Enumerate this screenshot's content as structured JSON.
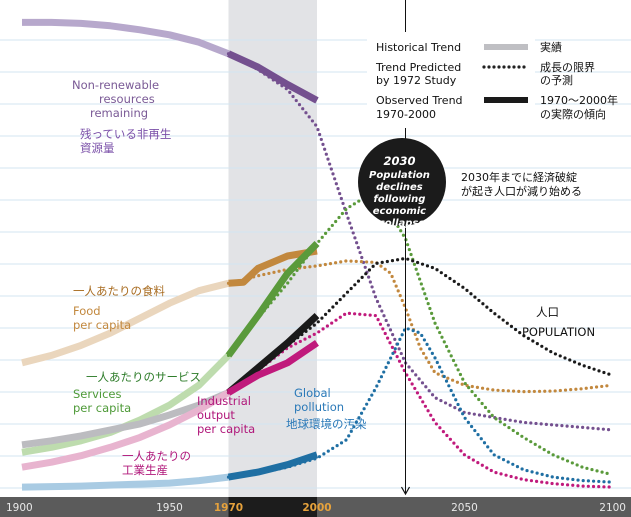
{
  "chart_data": {
    "type": "line",
    "xlim": [
      1900,
      2100
    ],
    "ylim": [
      0,
      1
    ],
    "x_ticks": [
      {
        "value": 1900,
        "label": "1900",
        "highlight": false
      },
      {
        "value": 1950,
        "label": "1950",
        "highlight": false
      },
      {
        "value": 1970,
        "label": "1970",
        "highlight": true
      },
      {
        "value": 2000,
        "label": "2000",
        "highlight": true
      },
      {
        "value": 2050,
        "label": "2050",
        "highlight": false
      },
      {
        "value": 2100,
        "label": "2100",
        "highlight": false
      }
    ],
    "shaded_period": [
      1970,
      2000
    ],
    "marker_year": 2030,
    "legend": [
      {
        "key": "historical",
        "en": "Historical Trend",
        "ja": "実績",
        "style": "solid-light"
      },
      {
        "key": "predicted",
        "en_lines": [
          "Trend Predicted",
          "by 1972 Study"
        ],
        "ja_lines": [
          "成長の限界",
          "の予測"
        ],
        "style": "dotted"
      },
      {
        "key": "observed",
        "en_lines": [
          "Observed Trend",
          "1970-2000"
        ],
        "ja_lines": [
          "1970～2000年",
          "の実際の傾向"
        ],
        "style": "solid-dark"
      }
    ],
    "annotation": {
      "circle_lines": [
        "2030",
        "Population",
        "declines",
        "following",
        "economic",
        "collapse"
      ],
      "ja_lines": [
        "2030年までに経済破綻",
        "が起き人口が減り始める"
      ]
    },
    "series": [
      {
        "key": "resources",
        "label_en": [
          "Non-renewable",
          "resources",
          "remaining"
        ],
        "label_ja": [
          "残っている非再生",
          "資源量"
        ],
        "color_historical": "#b7a8cc",
        "color_main": "#74508f",
        "historical": [
          [
            1900,
            0.955
          ],
          [
            1910,
            0.955
          ],
          [
            1920,
            0.953
          ],
          [
            1930,
            0.948
          ],
          [
            1940,
            0.94
          ],
          [
            1950,
            0.93
          ],
          [
            1960,
            0.915
          ],
          [
            1970,
            0.892
          ]
        ],
        "observed": [
          [
            1970,
            0.892
          ],
          [
            1980,
            0.865
          ],
          [
            1990,
            0.83
          ],
          [
            2000,
            0.798
          ]
        ],
        "predicted": [
          [
            1970,
            0.892
          ],
          [
            1980,
            0.86
          ],
          [
            1990,
            0.82
          ],
          [
            2000,
            0.745
          ],
          [
            2010,
            0.57
          ],
          [
            2020,
            0.4
          ],
          [
            2030,
            0.27
          ],
          [
            2040,
            0.2
          ],
          [
            2050,
            0.17
          ],
          [
            2060,
            0.16
          ],
          [
            2070,
            0.15
          ],
          [
            2080,
            0.145
          ],
          [
            2090,
            0.14
          ],
          [
            2100,
            0.135
          ]
        ]
      },
      {
        "key": "food",
        "label_en": [
          "Food",
          "per capita"
        ],
        "label_ja": [
          "一人あたりの食料"
        ],
        "color_historical": "#ead6bd",
        "color_main": "#c2883e",
        "historical": [
          [
            1900,
            0.27
          ],
          [
            1910,
            0.285
          ],
          [
            1920,
            0.305
          ],
          [
            1930,
            0.33
          ],
          [
            1940,
            0.36
          ],
          [
            1950,
            0.39
          ],
          [
            1960,
            0.415
          ],
          [
            1970,
            0.43
          ]
        ],
        "observed": [
          [
            1970,
            0.43
          ],
          [
            1975,
            0.432
          ],
          [
            1980,
            0.46
          ],
          [
            1990,
            0.485
          ],
          [
            2000,
            0.495
          ]
        ],
        "predicted": [
          [
            1970,
            0.43
          ],
          [
            1980,
            0.445
          ],
          [
            1990,
            0.458
          ],
          [
            2000,
            0.465
          ],
          [
            2010,
            0.475
          ],
          [
            2020,
            0.472
          ],
          [
            2025,
            0.45
          ],
          [
            2030,
            0.38
          ],
          [
            2035,
            0.3
          ],
          [
            2040,
            0.25
          ],
          [
            2050,
            0.225
          ],
          [
            2060,
            0.215
          ],
          [
            2070,
            0.212
          ],
          [
            2080,
            0.213
          ],
          [
            2090,
            0.218
          ],
          [
            2100,
            0.225
          ]
        ]
      },
      {
        "key": "services",
        "label_en": [
          "Services",
          "per capita"
        ],
        "label_ja": [
          "一人あたりのサービス"
        ],
        "color_historical": "#bedcae",
        "color_main": "#5a9a3b",
        "historical": [
          [
            1900,
            0.09
          ],
          [
            1910,
            0.1
          ],
          [
            1920,
            0.113
          ],
          [
            1930,
            0.13
          ],
          [
            1940,
            0.155
          ],
          [
            1950,
            0.185
          ],
          [
            1960,
            0.225
          ],
          [
            1970,
            0.285
          ]
        ],
        "observed": [
          [
            1970,
            0.285
          ],
          [
            1980,
            0.365
          ],
          [
            1990,
            0.45
          ],
          [
            2000,
            0.51
          ]
        ],
        "predicted": [
          [
            1970,
            0.285
          ],
          [
            1980,
            0.36
          ],
          [
            1990,
            0.43
          ],
          [
            2000,
            0.51
          ],
          [
            2010,
            0.58
          ],
          [
            2020,
            0.617
          ],
          [
            2030,
            0.52
          ],
          [
            2040,
            0.35
          ],
          [
            2050,
            0.23
          ],
          [
            2060,
            0.16
          ],
          [
            2070,
            0.12
          ],
          [
            2080,
            0.085
          ],
          [
            2090,
            0.06
          ],
          [
            2100,
            0.045
          ]
        ]
      },
      {
        "key": "population",
        "label_en": [
          "POPULATION"
        ],
        "label_ja": [
          "人口"
        ],
        "color_historical": "#bcbcc0",
        "color_main": "#1a1a1a",
        "historical": [
          [
            1900,
            0.105
          ],
          [
            1910,
            0.113
          ],
          [
            1920,
            0.123
          ],
          [
            1930,
            0.135
          ],
          [
            1940,
            0.147
          ],
          [
            1950,
            0.165
          ],
          [
            1960,
            0.185
          ],
          [
            1970,
            0.21
          ]
        ],
        "observed": [
          [
            1970,
            0.21
          ],
          [
            1980,
            0.26
          ],
          [
            1990,
            0.31
          ],
          [
            2000,
            0.365
          ]
        ],
        "predicted": [
          [
            1970,
            0.21
          ],
          [
            1980,
            0.255
          ],
          [
            1990,
            0.305
          ],
          [
            2000,
            0.35
          ],
          [
            2010,
            0.41
          ],
          [
            2020,
            0.47
          ],
          [
            2030,
            0.48
          ],
          [
            2040,
            0.46
          ],
          [
            2050,
            0.42
          ],
          [
            2060,
            0.37
          ],
          [
            2070,
            0.325
          ],
          [
            2080,
            0.29
          ],
          [
            2090,
            0.265
          ],
          [
            2100,
            0.245
          ]
        ]
      },
      {
        "key": "industrial",
        "label_en": [
          "Industrial",
          "output",
          "per capita"
        ],
        "label_ja": [
          "一人あたりの",
          "工業生産"
        ],
        "color_historical": "#e8b4cf",
        "color_main": "#c01a7c",
        "historical": [
          [
            1900,
            0.06
          ],
          [
            1910,
            0.07
          ],
          [
            1920,
            0.083
          ],
          [
            1930,
            0.1
          ],
          [
            1940,
            0.12
          ],
          [
            1950,
            0.145
          ],
          [
            1960,
            0.175
          ],
          [
            1970,
            0.21
          ]
        ],
        "observed": [
          [
            1970,
            0.21
          ],
          [
            1980,
            0.245
          ],
          [
            1990,
            0.27
          ],
          [
            2000,
            0.31
          ]
        ],
        "predicted": [
          [
            1970,
            0.21
          ],
          [
            1980,
            0.255
          ],
          [
            1990,
            0.3
          ],
          [
            2000,
            0.33
          ],
          [
            2010,
            0.37
          ],
          [
            2020,
            0.365
          ],
          [
            2030,
            0.25
          ],
          [
            2040,
            0.15
          ],
          [
            2050,
            0.085
          ],
          [
            2060,
            0.05
          ],
          [
            2070,
            0.035
          ],
          [
            2080,
            0.027
          ],
          [
            2090,
            0.022
          ],
          [
            2100,
            0.02
          ]
        ]
      },
      {
        "key": "pollution",
        "label_en": [
          "Global",
          "pollution"
        ],
        "label_ja": [
          "地球環境の汚染"
        ],
        "color_historical": "#a9cbe3",
        "color_main": "#1f6fa3",
        "historical": [
          [
            1900,
            0.02
          ],
          [
            1920,
            0.022
          ],
          [
            1940,
            0.026
          ],
          [
            1950,
            0.028
          ],
          [
            1960,
            0.033
          ],
          [
            1970,
            0.04
          ]
        ],
        "observed": [
          [
            1970,
            0.04
          ],
          [
            1980,
            0.05
          ],
          [
            1990,
            0.065
          ],
          [
            2000,
            0.085
          ]
        ],
        "predicted": [
          [
            1970,
            0.04
          ],
          [
            1980,
            0.048
          ],
          [
            1990,
            0.06
          ],
          [
            2000,
            0.078
          ],
          [
            2010,
            0.115
          ],
          [
            2020,
            0.22
          ],
          [
            2030,
            0.34
          ],
          [
            2035,
            0.33
          ],
          [
            2040,
            0.28
          ],
          [
            2050,
            0.16
          ],
          [
            2060,
            0.085
          ],
          [
            2070,
            0.055
          ],
          [
            2080,
            0.04
          ],
          [
            2090,
            0.033
          ],
          [
            2100,
            0.03
          ]
        ]
      }
    ]
  }
}
